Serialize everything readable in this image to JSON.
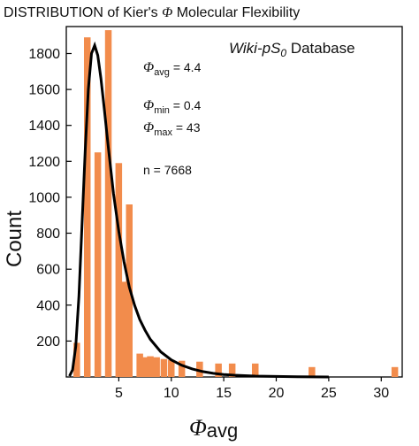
{
  "chart_data": {
    "type": "bar",
    "title": {
      "prefix": "DISTRIBUTION of Kier's ",
      "symbol": "Φ",
      "suffix": " Molecular Flexibility"
    },
    "xlabel": {
      "symbol": "Φ",
      "subscript": "avg"
    },
    "ylabel": "Count",
    "xlim": [
      0,
      32
    ],
    "ylim": [
      0,
      1950
    ],
    "xticks": [
      5,
      10,
      15,
      20,
      25,
      30
    ],
    "yticks": [
      200,
      400,
      600,
      800,
      1000,
      1200,
      1400,
      1600,
      1800
    ],
    "grid": false,
    "bar_color": "#f28c4c",
    "curve_color": "#000000",
    "bars": [
      {
        "x": 1.0,
        "value": 190
      },
      {
        "x": 2.0,
        "value": 1890
      },
      {
        "x": 3.0,
        "value": 1250
      },
      {
        "x": 4.0,
        "value": 1930
      },
      {
        "x": 5.0,
        "value": 1190
      },
      {
        "x": 5.4,
        "value": 530
      },
      {
        "x": 6.0,
        "value": 960
      },
      {
        "x": 7.0,
        "value": 130
      },
      {
        "x": 7.5,
        "value": 110
      },
      {
        "x": 8.0,
        "value": 115
      },
      {
        "x": 8.6,
        "value": 110
      },
      {
        "x": 9.3,
        "value": 100
      },
      {
        "x": 10.0,
        "value": 95
      },
      {
        "x": 11.0,
        "value": 90
      },
      {
        "x": 12.7,
        "value": 85
      },
      {
        "x": 14.5,
        "value": 75
      },
      {
        "x": 15.8,
        "value": 75
      },
      {
        "x": 18.0,
        "value": 75
      },
      {
        "x": 23.4,
        "value": 55
      },
      {
        "x": 31.3,
        "value": 55
      }
    ],
    "fit_curve": {
      "x": [
        0.3,
        0.6,
        0.9,
        1.2,
        1.5,
        1.8,
        2.1,
        2.4,
        2.7,
        3.0,
        3.3,
        3.6,
        4.0,
        4.5,
        5.0,
        5.5,
        6.0,
        6.5,
        7.0,
        7.5,
        8.0,
        9.0,
        10.0,
        11.0,
        12.0,
        13.0,
        14.0,
        15.0,
        16.0,
        18.0,
        20.0,
        22.0,
        25.0
      ],
      "y": [
        5,
        40,
        170,
        450,
        850,
        1260,
        1600,
        1800,
        1845,
        1790,
        1660,
        1500,
        1280,
        1020,
        810,
        640,
        500,
        400,
        320,
        260,
        210,
        140,
        95,
        65,
        45,
        30,
        20,
        14,
        10,
        5,
        3,
        1,
        0
      ]
    },
    "annotations": {
      "database": {
        "name": "Wiki-pS",
        "subscript": "0",
        "suffix": " Database"
      },
      "avg": {
        "symbol": "Φ",
        "subscript": "avg",
        "text": " = 4.4"
      },
      "min": {
        "symbol": "Φ",
        "subscript": "min",
        "text": " = 0.4"
      },
      "max": {
        "symbol": "Φ",
        "subscript": "max",
        "text": " = 43"
      },
      "n": "n = 7668"
    }
  }
}
